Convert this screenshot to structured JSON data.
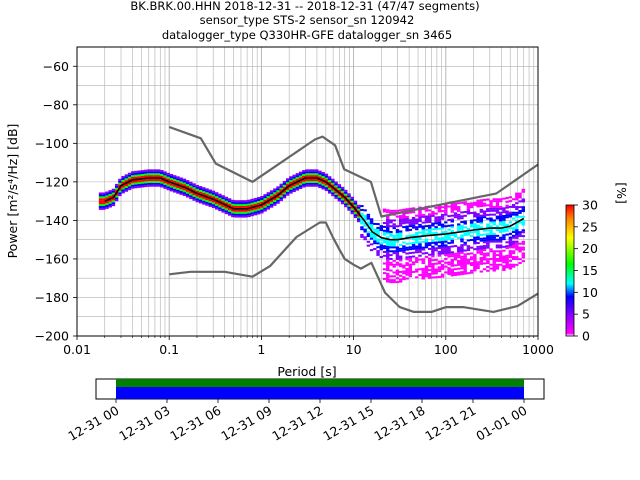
{
  "title": {
    "line1": "BK.BRK.00.HHN   2018-12-31 -- 2018-12-31  (47/47 segments)",
    "line2": "sensor_type STS-2 sensor_sn 120942",
    "line3": "datalogger_type Q330HR-GFE datalogger_sn 3465"
  },
  "chart_data": [
    {
      "type": "heatmap",
      "subtype": "probabilistic power spectral density",
      "xlabel": "Period [s]",
      "ylabel": "Power [m²/s⁴/Hz] [dB]",
      "xscale": "log",
      "xlim": [
        0.01,
        1000
      ],
      "ylim": [
        -200,
        -50
      ],
      "x_ticks": [
        "0.01",
        "0.1",
        "1",
        "10",
        "100",
        "1000"
      ],
      "y_ticks": [
        "−200",
        "−180",
        "−160",
        "−140",
        "−120",
        "−100",
        "−80",
        "−60"
      ],
      "grid": true,
      "colorbar": {
        "label": "[%]",
        "range": [
          0,
          30
        ],
        "ticks": [
          "0",
          "5",
          "10",
          "15",
          "20",
          "25",
          "30"
        ],
        "colormap": [
          "#ffffff",
          "#ff00ff",
          "#0000ff",
          "#00ffff",
          "#00ff00",
          "#ffff00",
          "#ff0000"
        ]
      },
      "series": [
        {
          "role": "mode",
          "color": "#000000",
          "x": [
            0.02,
            0.025,
            0.03,
            0.04,
            0.06,
            0.08,
            0.1,
            0.15,
            0.2,
            0.3,
            0.5,
            0.7,
            1,
            1.5,
            2,
            3,
            4,
            5,
            6,
            8,
            10,
            13,
            16,
            20,
            25,
            30,
            40,
            60,
            100,
            200,
            300,
            400,
            500,
            700
          ],
          "y": [
            -130,
            -128,
            -122,
            -119,
            -118,
            -118,
            -120,
            -123,
            -126,
            -129,
            -134,
            -134,
            -132,
            -127,
            -122,
            -118,
            -118,
            -120,
            -123,
            -128,
            -133,
            -140,
            -146,
            -149,
            -150,
            -150,
            -149,
            -148,
            -147,
            -145,
            -144,
            -144,
            -143,
            -139
          ]
        },
        {
          "role": "high noise model",
          "color": "#666666",
          "x": [
            0.1,
            0.22,
            0.32,
            0.8,
            3.8,
            4.6,
            6.3,
            7.9,
            15.4,
            20,
            354.8,
            1000
          ],
          "y": [
            -91.5,
            -97.4,
            -110.5,
            -120,
            -98,
            -96.5,
            -101,
            -113.5,
            -120,
            -138,
            -126,
            -111
          ]
        },
        {
          "role": "low noise model",
          "color": "#666666",
          "x": [
            0.1,
            0.17,
            0.4,
            0.8,
            1.24,
            2.4,
            4.3,
            5,
            6,
            7,
            8,
            10,
            12,
            15.6,
            21.9,
            31.6,
            45,
            70,
            101,
            154,
            328,
            600,
            1000
          ],
          "y": [
            -168,
            -166.7,
            -166.7,
            -169.2,
            -163.7,
            -148.6,
            -141.1,
            -141.1,
            -149,
            -155,
            -160,
            -163,
            -165,
            -162,
            -177.5,
            -185,
            -187.5,
            -187.5,
            -185,
            -185,
            -187.5,
            -184.5,
            -178
          ]
        }
      ]
    },
    {
      "type": "timeline",
      "description": "data coverage",
      "x_ticks": [
        "12-31 00",
        "12-31 03",
        "12-31 06",
        "12-31 09",
        "12-31 12",
        "12-31 15",
        "12-31 18",
        "12-31 21",
        "01-01 00"
      ],
      "bars": [
        {
          "role": "coverage",
          "color": "#008000",
          "start_hour": 0,
          "end_hour": 24
        },
        {
          "role": "used",
          "color": "#0000ff",
          "start_hour": 0,
          "end_hour": 24
        }
      ]
    }
  ]
}
